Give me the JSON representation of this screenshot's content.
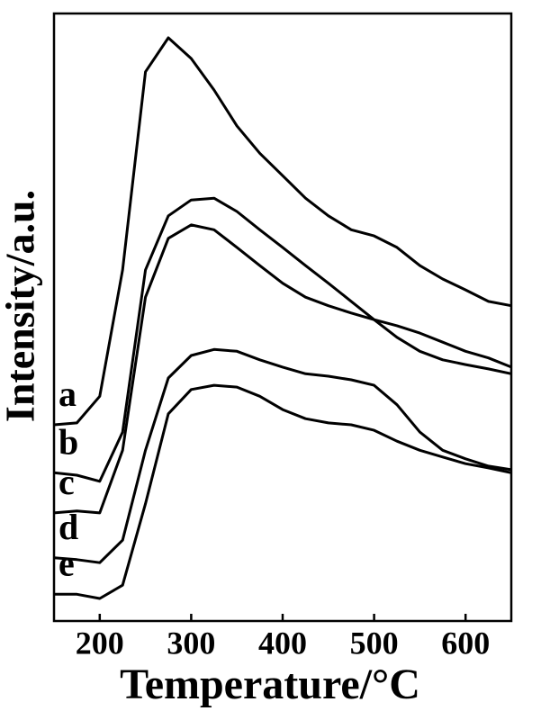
{
  "chart_data": {
    "type": "line",
    "x_label": "Temperature/°C",
    "y_label": "Intensity/a.u.",
    "x": [
      150,
      175,
      200,
      225,
      250,
      275,
      300,
      325,
      350,
      375,
      400,
      425,
      450,
      475,
      500,
      525,
      550,
      575,
      600,
      625,
      650
    ],
    "xlim": [
      150,
      650
    ],
    "xticks": [
      200,
      300,
      400,
      500,
      600
    ],
    "ylim": [
      0,
      100
    ],
    "series": [
      {
        "name": "a",
        "color": "#000000",
        "values": [
          32.3,
          32.6,
          37.0,
          57.8,
          90.4,
          96.0,
          92.6,
          87.4,
          81.5,
          77.0,
          73.3,
          69.6,
          66.7,
          64.4,
          63.4,
          61.5,
          58.5,
          56.3,
          54.5,
          52.6,
          51.9
        ]
      },
      {
        "name": "b",
        "color": "#000000",
        "values": [
          24.4,
          24.0,
          23.0,
          31.1,
          57.8,
          66.7,
          69.3,
          69.6,
          67.4,
          64.4,
          61.5,
          58.5,
          55.6,
          52.6,
          49.6,
          46.7,
          44.4,
          43.0,
          42.2,
          41.5,
          40.7
        ]
      },
      {
        "name": "c",
        "color": "#000000",
        "values": [
          17.8,
          18.1,
          17.8,
          28.1,
          53.3,
          63.0,
          65.2,
          64.4,
          61.5,
          58.5,
          55.6,
          53.3,
          51.9,
          50.7,
          49.6,
          48.6,
          47.4,
          45.9,
          44.4,
          43.3,
          41.8
        ]
      },
      {
        "name": "d",
        "color": "#000000",
        "values": [
          10.4,
          10.1,
          9.6,
          13.3,
          28.1,
          40.0,
          43.7,
          44.7,
          44.4,
          43.0,
          41.8,
          40.7,
          40.3,
          39.7,
          38.8,
          35.6,
          31.1,
          28.1,
          26.7,
          25.5,
          24.9
        ]
      },
      {
        "name": "e",
        "color": "#000000",
        "values": [
          4.4,
          4.4,
          3.7,
          5.9,
          19.3,
          34.1,
          38.1,
          38.8,
          38.5,
          37.0,
          34.8,
          33.3,
          32.6,
          32.3,
          31.4,
          29.6,
          28.1,
          27.0,
          25.9,
          25.2,
          24.4
        ]
      }
    ]
  }
}
